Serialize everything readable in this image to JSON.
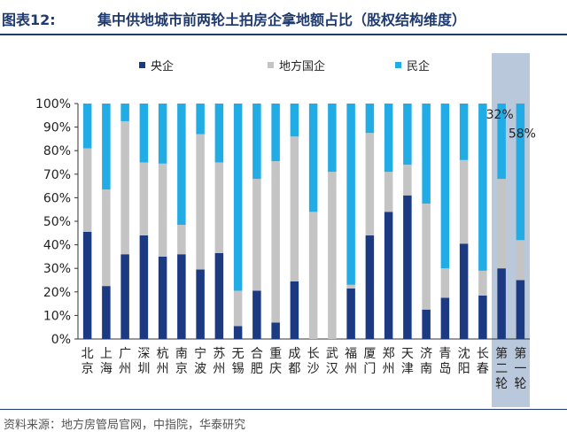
{
  "header": {
    "figure_label": "图表12:",
    "title": "集中供地城市前两轮土拍房企拿地额占比（股权结构维度）"
  },
  "footer": {
    "source": "资料来源：地方房管局官网，中指院，华泰研究"
  },
  "colors": {
    "central": "#1b3a82",
    "local": "#c4c4c4",
    "private": "#22ace6",
    "highlight": "#b9c8db",
    "axis": "#333333",
    "title": "#1f3a6e"
  },
  "chart_data": {
    "type": "bar",
    "stacked": true,
    "percent": true,
    "legend_position": "top",
    "grid": false,
    "ylim": [
      0,
      100
    ],
    "y_ticks": [
      "0%",
      "10%",
      "20%",
      "30%",
      "40%",
      "50%",
      "60%",
      "70%",
      "80%",
      "90%",
      "100%"
    ],
    "categories": [
      "北京",
      "上海",
      "广州",
      "深圳",
      "杭州",
      "南京",
      "宁波",
      "苏州",
      "无锡",
      "合肥",
      "重庆",
      "成都",
      "长沙",
      "武汉",
      "福州",
      "厦门",
      "郑州",
      "天津",
      "济南",
      "青岛",
      "沈阳",
      "长春",
      "第二轮",
      "第一轮"
    ],
    "series": [
      {
        "name": "央企",
        "values": [
          45.5,
          22.5,
          36,
          44,
          35,
          36,
          29.5,
          36.5,
          5.5,
          20.5,
          7,
          24.5,
          0,
          0,
          21.5,
          44,
          54,
          61,
          12.5,
          17.5,
          40.5,
          18.5,
          30,
          25
        ]
      },
      {
        "name": "地方国企",
        "values": [
          35.5,
          41,
          56.5,
          31,
          39.5,
          12.5,
          57.5,
          38.5,
          15,
          47.5,
          68.5,
          61.5,
          54,
          71,
          1.5,
          43.5,
          17,
          13,
          45,
          12.5,
          35.5,
          10.5,
          38,
          17
        ]
      },
      {
        "name": "民企",
        "values": [
          19,
          36.5,
          7.5,
          25,
          25.5,
          51.5,
          13,
          25,
          79.5,
          32,
          24.5,
          14,
          46,
          29,
          77,
          12.5,
          29,
          26,
          42.5,
          70,
          24,
          71,
          32,
          58
        ]
      }
    ],
    "highlight_categories": [
      "第二轮",
      "第一轮"
    ],
    "annotations": [
      {
        "category": "第二轮",
        "series": "民企",
        "text": "32%"
      },
      {
        "category": "第一轮",
        "series": "民企",
        "text": "58%"
      }
    ]
  }
}
